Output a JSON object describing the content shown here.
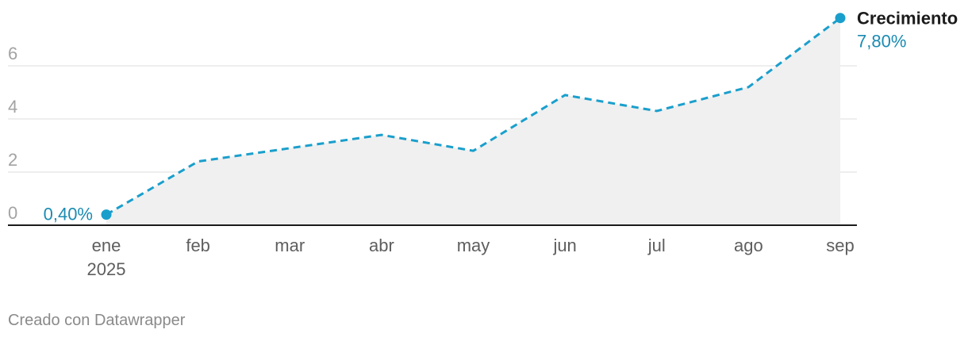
{
  "chart_data": {
    "type": "area",
    "categories": [
      "ene",
      "feb",
      "mar",
      "abr",
      "may",
      "jun",
      "jul",
      "ago",
      "sep"
    ],
    "year_label": "2025",
    "series": [
      {
        "name": "Crecimiento",
        "values": [
          0.4,
          2.4,
          2.9,
          3.4,
          2.8,
          4.9,
          4.3,
          5.2,
          7.8
        ],
        "color": "#1a9fcc",
        "fill": "#f0f0f0",
        "line_style": "dashed"
      }
    ],
    "y_ticks": [
      "0",
      "2",
      "4",
      "6"
    ],
    "ylim": [
      0,
      8
    ],
    "grid": true,
    "start_label": "0,40%",
    "end_label": "7,80%",
    "label_color": "#1b8bb2"
  },
  "footer": "Creado con Datawrapper"
}
